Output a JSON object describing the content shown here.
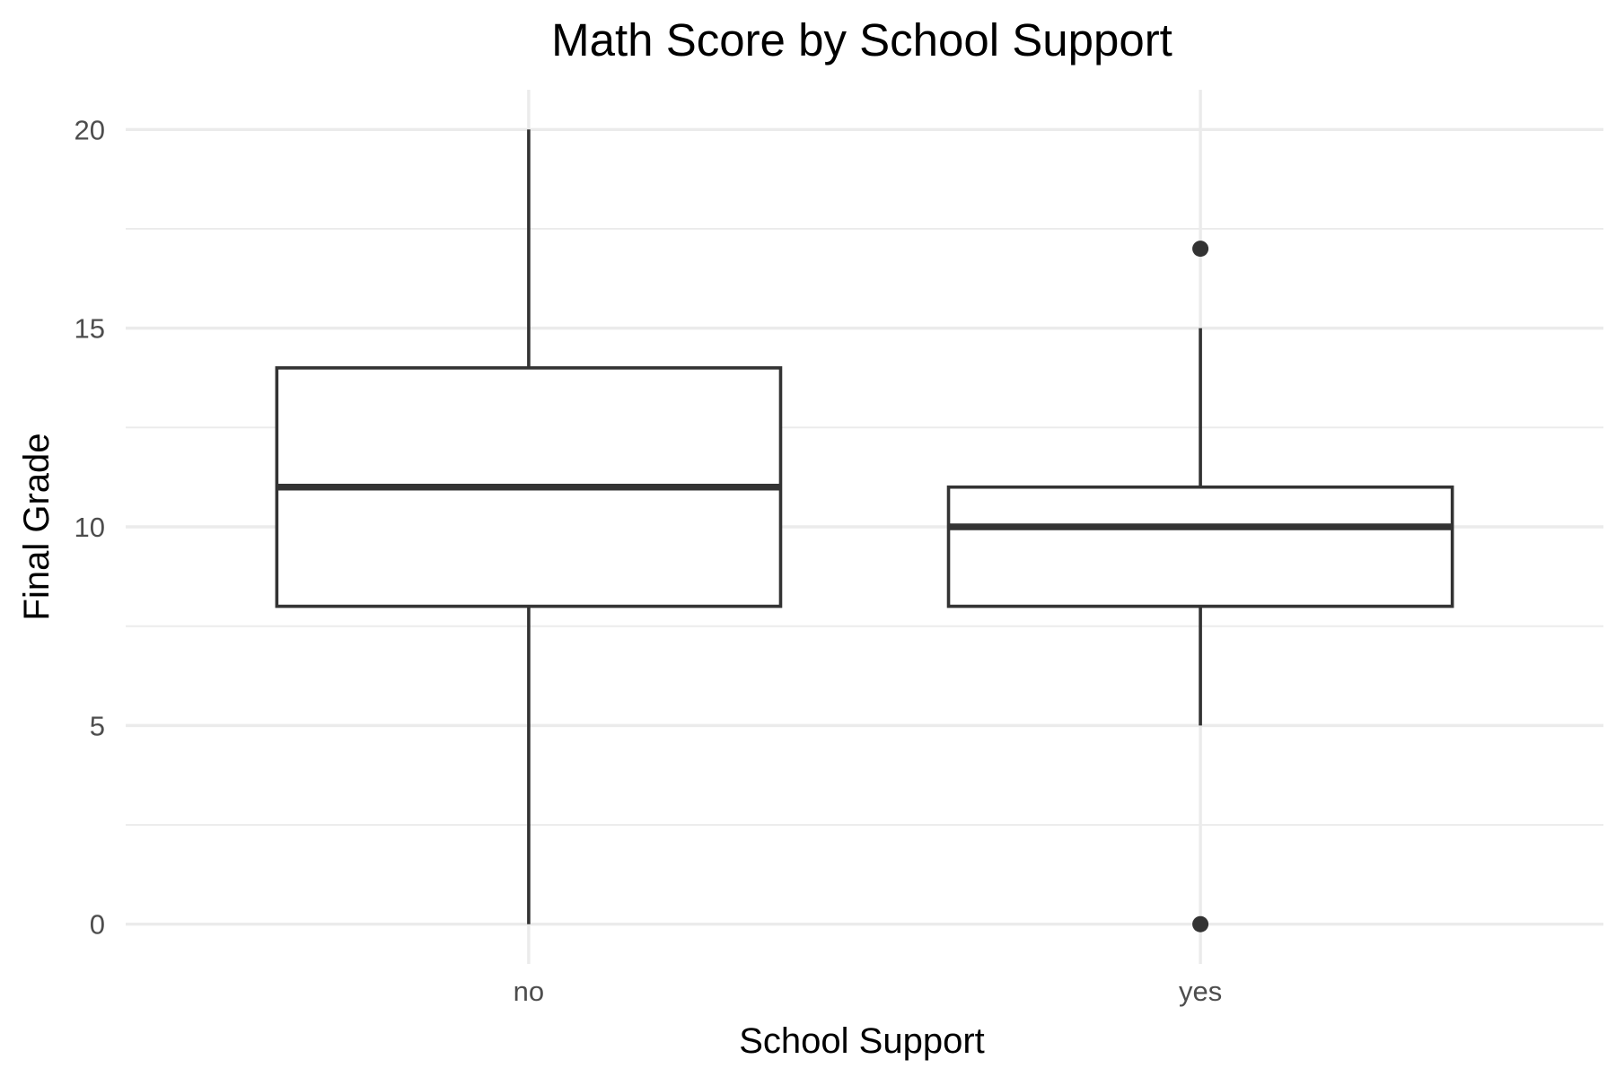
{
  "chart_data": {
    "type": "box",
    "title": "Math Score by School Support",
    "xlabel": "School Support",
    "ylabel": "Final Grade",
    "ylim": [
      -1,
      21
    ],
    "yticks": [
      0,
      5,
      10,
      15,
      20
    ],
    "categories": [
      "no",
      "yes"
    ],
    "boxes": [
      {
        "category": "no",
        "min": 0,
        "q1": 8,
        "median": 11,
        "q3": 14,
        "max": 20,
        "outliers": []
      },
      {
        "category": "yes",
        "min": 5,
        "q1": 8,
        "median": 10,
        "q3": 11,
        "max": 15,
        "outliers": [
          17,
          0
        ]
      }
    ],
    "grid": true,
    "legend": "none"
  },
  "colors": {
    "background": "#ffffff",
    "grid": "#ebebeb",
    "box_stroke": "#333333",
    "tick_text": "#4d4d4d"
  }
}
